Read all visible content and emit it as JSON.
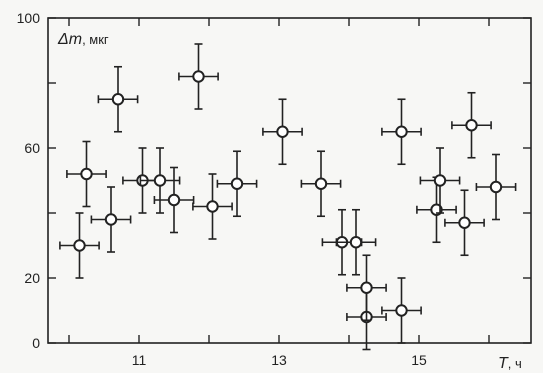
{
  "chart_data": {
    "type": "scatter",
    "title": "",
    "xlabel": "T, ч",
    "xlabel_symbol": "T",
    "xlabel_unit": ", ч",
    "ylabel": "Δm, мкг",
    "ylabel_symbol": "Δm",
    "ylabel_unit": ", мкг",
    "xlim": [
      9.7,
      16.6
    ],
    "ylim": [
      0,
      100
    ],
    "x_ticks": [
      11,
      13,
      15
    ],
    "x_ticks_unlabeled": [
      10,
      12,
      14,
      16
    ],
    "y_ticks": [
      0,
      20,
      60,
      100
    ],
    "y_ticks_unlabeled": [
      40,
      80
    ],
    "grid": false,
    "error_bars": {
      "x": 0.28,
      "y": 10
    },
    "points": [
      {
        "x": 10.15,
        "y": 30
      },
      {
        "x": 10.25,
        "y": 52
      },
      {
        "x": 10.6,
        "y": 38
      },
      {
        "x": 10.7,
        "y": 75
      },
      {
        "x": 11.05,
        "y": 50
      },
      {
        "x": 11.3,
        "y": 50
      },
      {
        "x": 11.5,
        "y": 44
      },
      {
        "x": 11.85,
        "y": 82
      },
      {
        "x": 12.05,
        "y": 42
      },
      {
        "x": 12.4,
        "y": 49
      },
      {
        "x": 13.05,
        "y": 65
      },
      {
        "x": 13.6,
        "y": 49
      },
      {
        "x": 13.9,
        "y": 31
      },
      {
        "x": 14.1,
        "y": 31
      },
      {
        "x": 14.25,
        "y": 8
      },
      {
        "x": 14.25,
        "y": 17
      },
      {
        "x": 14.75,
        "y": 10
      },
      {
        "x": 14.75,
        "y": 65
      },
      {
        "x": 15.25,
        "y": 41
      },
      {
        "x": 15.3,
        "y": 50
      },
      {
        "x": 15.65,
        "y": 37
      },
      {
        "x": 15.75,
        "y": 67
      },
      {
        "x": 16.1,
        "y": 48
      }
    ]
  }
}
